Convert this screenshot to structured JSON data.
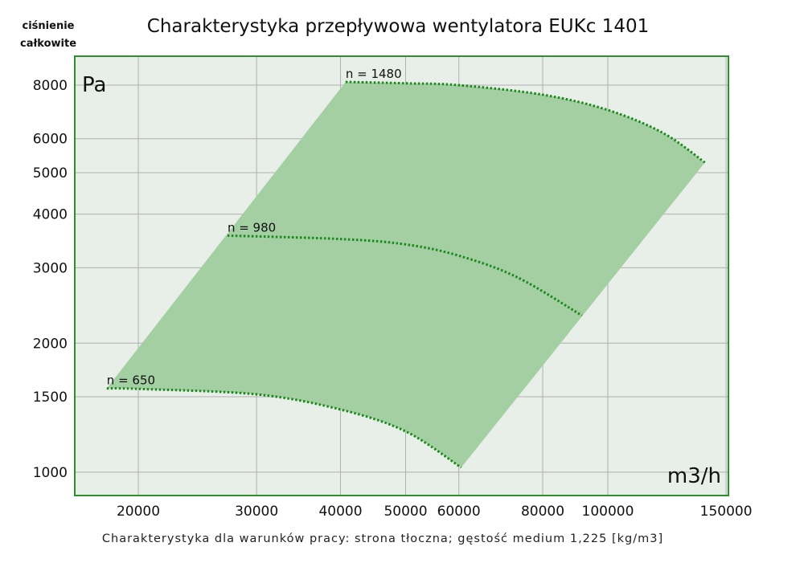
{
  "chart_data": {
    "type": "line",
    "title": "Charakterystyka przepływowa wentylatora EUKc 1401",
    "ylabel_lines": [
      "ciśnienie",
      "całkowite"
    ],
    "y_unit": "Pa",
    "x_unit": "m3/h",
    "footnote": "Charakterystyka dla warunków pracy: strona tłoczna; gęstość medium 1,225 [kg/m3]",
    "xscale": "log",
    "yscale": "log",
    "xlim": [
      16085,
      151200
    ],
    "ylim": [
      882,
      9346
    ],
    "grid": true,
    "x_ticks": [
      {
        "value": 20000,
        "label": "20000"
      },
      {
        "value": 30000,
        "label": "30000"
      },
      {
        "value": 40000,
        "label": "40000"
      },
      {
        "value": 50000,
        "label": "50000"
      },
      {
        "value": 60000,
        "label": "60000"
      },
      {
        "value": 80000,
        "label": "80000"
      },
      {
        "value": 100000,
        "label": "100000"
      },
      {
        "value": 150000,
        "label": "150000"
      }
    ],
    "y_ticks": [
      {
        "value": 1000,
        "label": "1000"
      },
      {
        "value": 1500,
        "label": "1500"
      },
      {
        "value": 2000,
        "label": "2000"
      },
      {
        "value": 3000,
        "label": "3000"
      },
      {
        "value": 4000,
        "label": "4000"
      },
      {
        "value": 5000,
        "label": "5000"
      },
      {
        "value": 6000,
        "label": "6000"
      },
      {
        "value": 8000,
        "label": "8000"
      }
    ],
    "series": [
      {
        "name": "n = 1480",
        "x": [
          40700,
          50000,
          60000,
          80000,
          100000,
          120800,
          139500
        ],
        "y": [
          8140,
          8080,
          8000,
          7600,
          7000,
          6190,
          5280
        ]
      },
      {
        "name": "n = 980",
        "x": [
          27150,
          40000,
          50000,
          60000,
          73300,
          91500
        ],
        "y": [
          3564,
          3500,
          3400,
          3200,
          2850,
          2320
        ]
      },
      {
        "name": "n = 650",
        "x": [
          17950,
          20000,
          30000,
          40000,
          50000,
          60500
        ],
        "y": [
          1568,
          1564,
          1519,
          1400,
          1245,
          1025
        ]
      }
    ],
    "colors": {
      "curve": "#1b8a1b",
      "area": "#a3cfa3",
      "plot_bg": "#e8eee8",
      "border": "#2f8f2f",
      "grid": "#b0b0b0"
    }
  }
}
